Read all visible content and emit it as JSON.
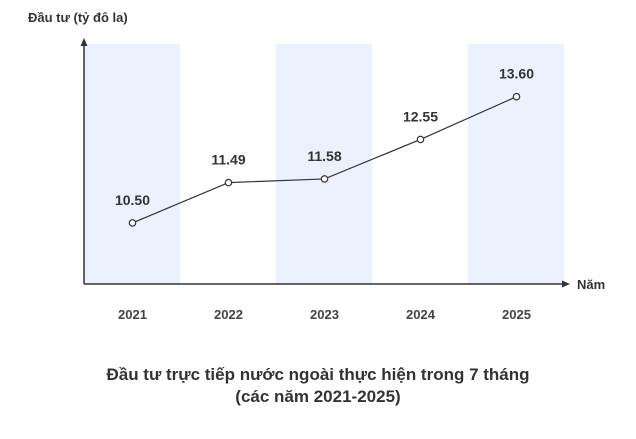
{
  "chart_data": {
    "type": "line",
    "title": "Đầu tư trực tiếp nước ngoài thực hiện trong 7 tháng",
    "subtitle": "(các năm 2021-2025)",
    "ylabel": "Đầu tư (tỷ đô la)",
    "xlabel": "Năm",
    "categories": [
      "2021",
      "2022",
      "2023",
      "2024",
      "2025"
    ],
    "values": [
      10.5,
      11.49,
      11.58,
      12.55,
      13.6
    ],
    "value_labels": [
      "10.50",
      "11.49",
      "11.58",
      "12.55",
      "13.60"
    ],
    "ylim": [
      9.0,
      14.5
    ],
    "shaded_columns": [
      0,
      2,
      4
    ],
    "grid": false
  },
  "colors": {
    "band": "#ebf1fd",
    "line": "#333333",
    "axis": "#333333",
    "text": "#333333"
  }
}
